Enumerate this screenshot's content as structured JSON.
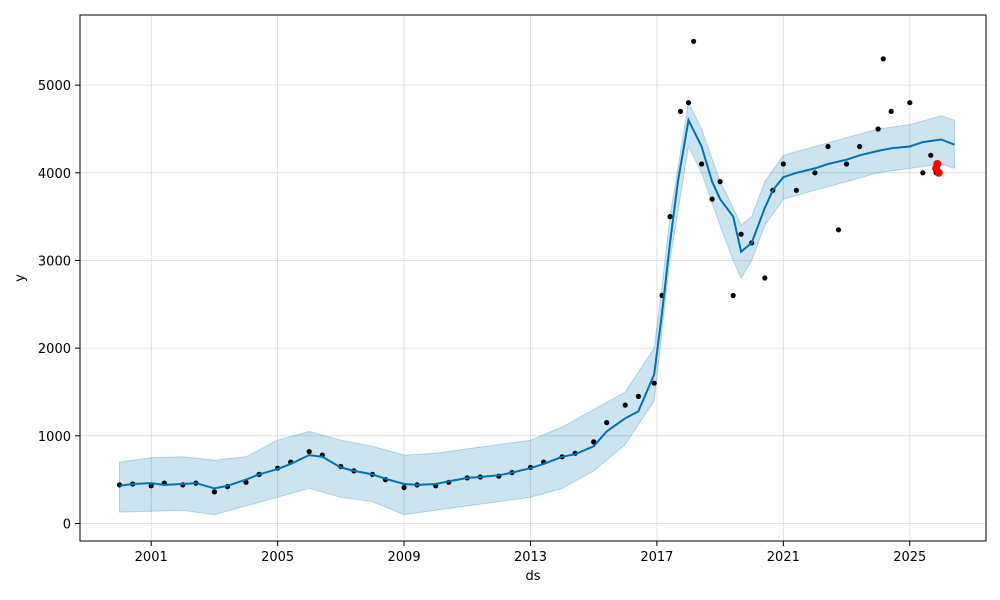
{
  "chart_data": {
    "type": "line",
    "title": "",
    "xlabel": "ds",
    "ylabel": "y",
    "xlim": [
      "1998-10-01",
      "2027-06-01"
    ],
    "ylim": [
      -200,
      5800
    ],
    "grid": true,
    "x_ticks": [
      "2001",
      "2005",
      "2009",
      "2013",
      "2017",
      "2021",
      "2025"
    ],
    "y_ticks": [
      0,
      1000,
      2000,
      3000,
      4000,
      5000
    ],
    "colors": {
      "observed": "#000000",
      "forecast": "#0072B2",
      "interval": "#0072B2",
      "highlight": "#ff0000",
      "grid": "#d9d9d9"
    },
    "series": [
      {
        "kind": "observed",
        "marker": "point",
        "color": "#000000",
        "points": [
          [
            "2000-01-01",
            440
          ],
          [
            "2000-06-01",
            450
          ],
          [
            "2001-01-01",
            430
          ],
          [
            "2001-06-01",
            460
          ],
          [
            "2002-01-01",
            440
          ],
          [
            "2002-06-01",
            460
          ],
          [
            "2003-01-01",
            360
          ],
          [
            "2003-06-01",
            420
          ],
          [
            "2004-01-01",
            470
          ],
          [
            "2004-06-01",
            560
          ],
          [
            "2005-01-01",
            630
          ],
          [
            "2005-06-01",
            700
          ],
          [
            "2006-01-01",
            820
          ],
          [
            "2006-06-01",
            780
          ],
          [
            "2007-01-01",
            650
          ],
          [
            "2007-06-01",
            600
          ],
          [
            "2008-01-01",
            560
          ],
          [
            "2008-06-01",
            500
          ],
          [
            "2009-01-01",
            410
          ],
          [
            "2009-06-01",
            440
          ],
          [
            "2010-01-01",
            430
          ],
          [
            "2010-06-01",
            470
          ],
          [
            "2011-01-01",
            520
          ],
          [
            "2011-06-01",
            530
          ],
          [
            "2012-01-01",
            540
          ],
          [
            "2012-06-01",
            580
          ],
          [
            "2013-01-01",
            640
          ],
          [
            "2013-06-01",
            700
          ],
          [
            "2014-01-01",
            760
          ],
          [
            "2014-06-01",
            800
          ],
          [
            "2015-01-01",
            930
          ],
          [
            "2015-06-01",
            1150
          ],
          [
            "2016-01-01",
            1350
          ],
          [
            "2016-06-01",
            1450
          ],
          [
            "2016-12-01",
            1600
          ],
          [
            "2017-03-01",
            2600
          ],
          [
            "2017-06-01",
            3500
          ],
          [
            "2017-10-01",
            4700
          ],
          [
            "2018-01-01",
            4800
          ],
          [
            "2018-03-01",
            5500
          ],
          [
            "2018-06-01",
            4100
          ],
          [
            "2018-10-01",
            3700
          ],
          [
            "2019-01-01",
            3900
          ],
          [
            "2019-06-01",
            2600
          ],
          [
            "2019-09-01",
            3300
          ],
          [
            "2020-01-01",
            3200
          ],
          [
            "2020-06-01",
            2800
          ],
          [
            "2020-09-01",
            3800
          ],
          [
            "2021-01-01",
            4100
          ],
          [
            "2021-06-01",
            3800
          ],
          [
            "2022-01-01",
            4000
          ],
          [
            "2022-06-01",
            4300
          ],
          [
            "2022-10-01",
            3350
          ],
          [
            "2023-01-01",
            4100
          ],
          [
            "2023-06-01",
            4300
          ],
          [
            "2024-01-01",
            4500
          ],
          [
            "2024-03-01",
            5300
          ],
          [
            "2024-06-01",
            4700
          ],
          [
            "2025-01-01",
            4800
          ],
          [
            "2025-06-01",
            4000
          ],
          [
            "2025-09-01",
            4200
          ],
          [
            "2025-11-01",
            4000
          ]
        ]
      },
      {
        "kind": "forecast",
        "marker": "line",
        "color": "#0072B2",
        "points": [
          [
            "2000-01-01",
            430
          ],
          [
            "2000-06-01",
            450
          ],
          [
            "2001-01-01",
            460
          ],
          [
            "2001-06-01",
            440
          ],
          [
            "2002-01-01",
            450
          ],
          [
            "2002-06-01",
            460
          ],
          [
            "2003-01-01",
            400
          ],
          [
            "2003-06-01",
            430
          ],
          [
            "2004-01-01",
            500
          ],
          [
            "2004-06-01",
            560
          ],
          [
            "2005-01-01",
            620
          ],
          [
            "2005-06-01",
            680
          ],
          [
            "2006-01-01",
            780
          ],
          [
            "2006-06-01",
            760
          ],
          [
            "2007-01-01",
            640
          ],
          [
            "2007-06-01",
            600
          ],
          [
            "2008-01-01",
            560
          ],
          [
            "2008-06-01",
            510
          ],
          [
            "2009-01-01",
            450
          ],
          [
            "2009-06-01",
            440
          ],
          [
            "2010-01-01",
            450
          ],
          [
            "2010-06-01",
            480
          ],
          [
            "2011-01-01",
            520
          ],
          [
            "2011-06-01",
            530
          ],
          [
            "2012-01-01",
            550
          ],
          [
            "2012-06-01",
            580
          ],
          [
            "2013-01-01",
            630
          ],
          [
            "2013-06-01",
            680
          ],
          [
            "2014-01-01",
            760
          ],
          [
            "2014-06-01",
            790
          ],
          [
            "2015-01-01",
            880
          ],
          [
            "2015-06-01",
            1050
          ],
          [
            "2016-01-01",
            1200
          ],
          [
            "2016-06-01",
            1280
          ],
          [
            "2016-12-01",
            1700
          ],
          [
            "2017-03-01",
            2400
          ],
          [
            "2017-06-01",
            3200
          ],
          [
            "2017-09-01",
            3900
          ],
          [
            "2018-01-01",
            4600
          ],
          [
            "2018-06-01",
            4300
          ],
          [
            "2018-10-01",
            3900
          ],
          [
            "2019-01-01",
            3700
          ],
          [
            "2019-06-01",
            3500
          ],
          [
            "2019-09-01",
            3100
          ],
          [
            "2020-01-01",
            3200
          ],
          [
            "2020-06-01",
            3600
          ],
          [
            "2020-09-01",
            3800
          ],
          [
            "2021-01-01",
            3950
          ],
          [
            "2021-06-01",
            4000
          ],
          [
            "2022-01-01",
            4050
          ],
          [
            "2022-06-01",
            4100
          ],
          [
            "2023-01-01",
            4150
          ],
          [
            "2023-06-01",
            4200
          ],
          [
            "2024-01-01",
            4250
          ],
          [
            "2024-06-01",
            4280
          ],
          [
            "2025-01-01",
            4300
          ],
          [
            "2025-06-01",
            4350
          ],
          [
            "2026-01-01",
            4380
          ],
          [
            "2026-06-01",
            4320
          ]
        ]
      },
      {
        "kind": "highlight",
        "marker": "point",
        "color": "#ff0000",
        "points": [
          [
            "2025-11-01",
            4050
          ],
          [
            "2025-11-15",
            4100
          ],
          [
            "2025-12-01",
            4000
          ]
        ]
      }
    ],
    "interval": {
      "points": [
        [
          "2000-01-01",
          130,
          700
        ],
        [
          "2001-01-01",
          140,
          750
        ],
        [
          "2002-01-01",
          150,
          760
        ],
        [
          "2003-01-01",
          100,
          720
        ],
        [
          "2004-01-01",
          200,
          760
        ],
        [
          "2005-01-01",
          300,
          950
        ],
        [
          "2006-01-01",
          400,
          1050
        ],
        [
          "2007-01-01",
          300,
          950
        ],
        [
          "2008-01-01",
          250,
          880
        ],
        [
          "2009-01-01",
          100,
          780
        ],
        [
          "2010-01-01",
          150,
          800
        ],
        [
          "2011-01-01",
          200,
          850
        ],
        [
          "2012-01-01",
          250,
          900
        ],
        [
          "2013-01-01",
          300,
          950
        ],
        [
          "2014-01-01",
          400,
          1100
        ],
        [
          "2015-01-01",
          600,
          1300
        ],
        [
          "2016-01-01",
          900,
          1500
        ],
        [
          "2016-12-01",
          1400,
          2000
        ],
        [
          "2017-03-01",
          2200,
          2700
        ],
        [
          "2017-06-01",
          3000,
          3500
        ],
        [
          "2018-01-01",
          4300,
          4800
        ],
        [
          "2018-06-01",
          4000,
          4500
        ],
        [
          "2019-01-01",
          3400,
          3900
        ],
        [
          "2019-06-01",
          3000,
          3600
        ],
        [
          "2019-09-01",
          2800,
          3400
        ],
        [
          "2020-01-01",
          3000,
          3500
        ],
        [
          "2020-06-01",
          3400,
          3900
        ],
        [
          "2021-01-01",
          3700,
          4200
        ],
        [
          "2022-01-01",
          3800,
          4300
        ],
        [
          "2023-01-01",
          3900,
          4400
        ],
        [
          "2024-01-01",
          4000,
          4500
        ],
        [
          "2025-01-01",
          4050,
          4550
        ],
        [
          "2026-01-01",
          4100,
          4650
        ],
        [
          "2026-06-01",
          4050,
          4600
        ]
      ]
    }
  }
}
